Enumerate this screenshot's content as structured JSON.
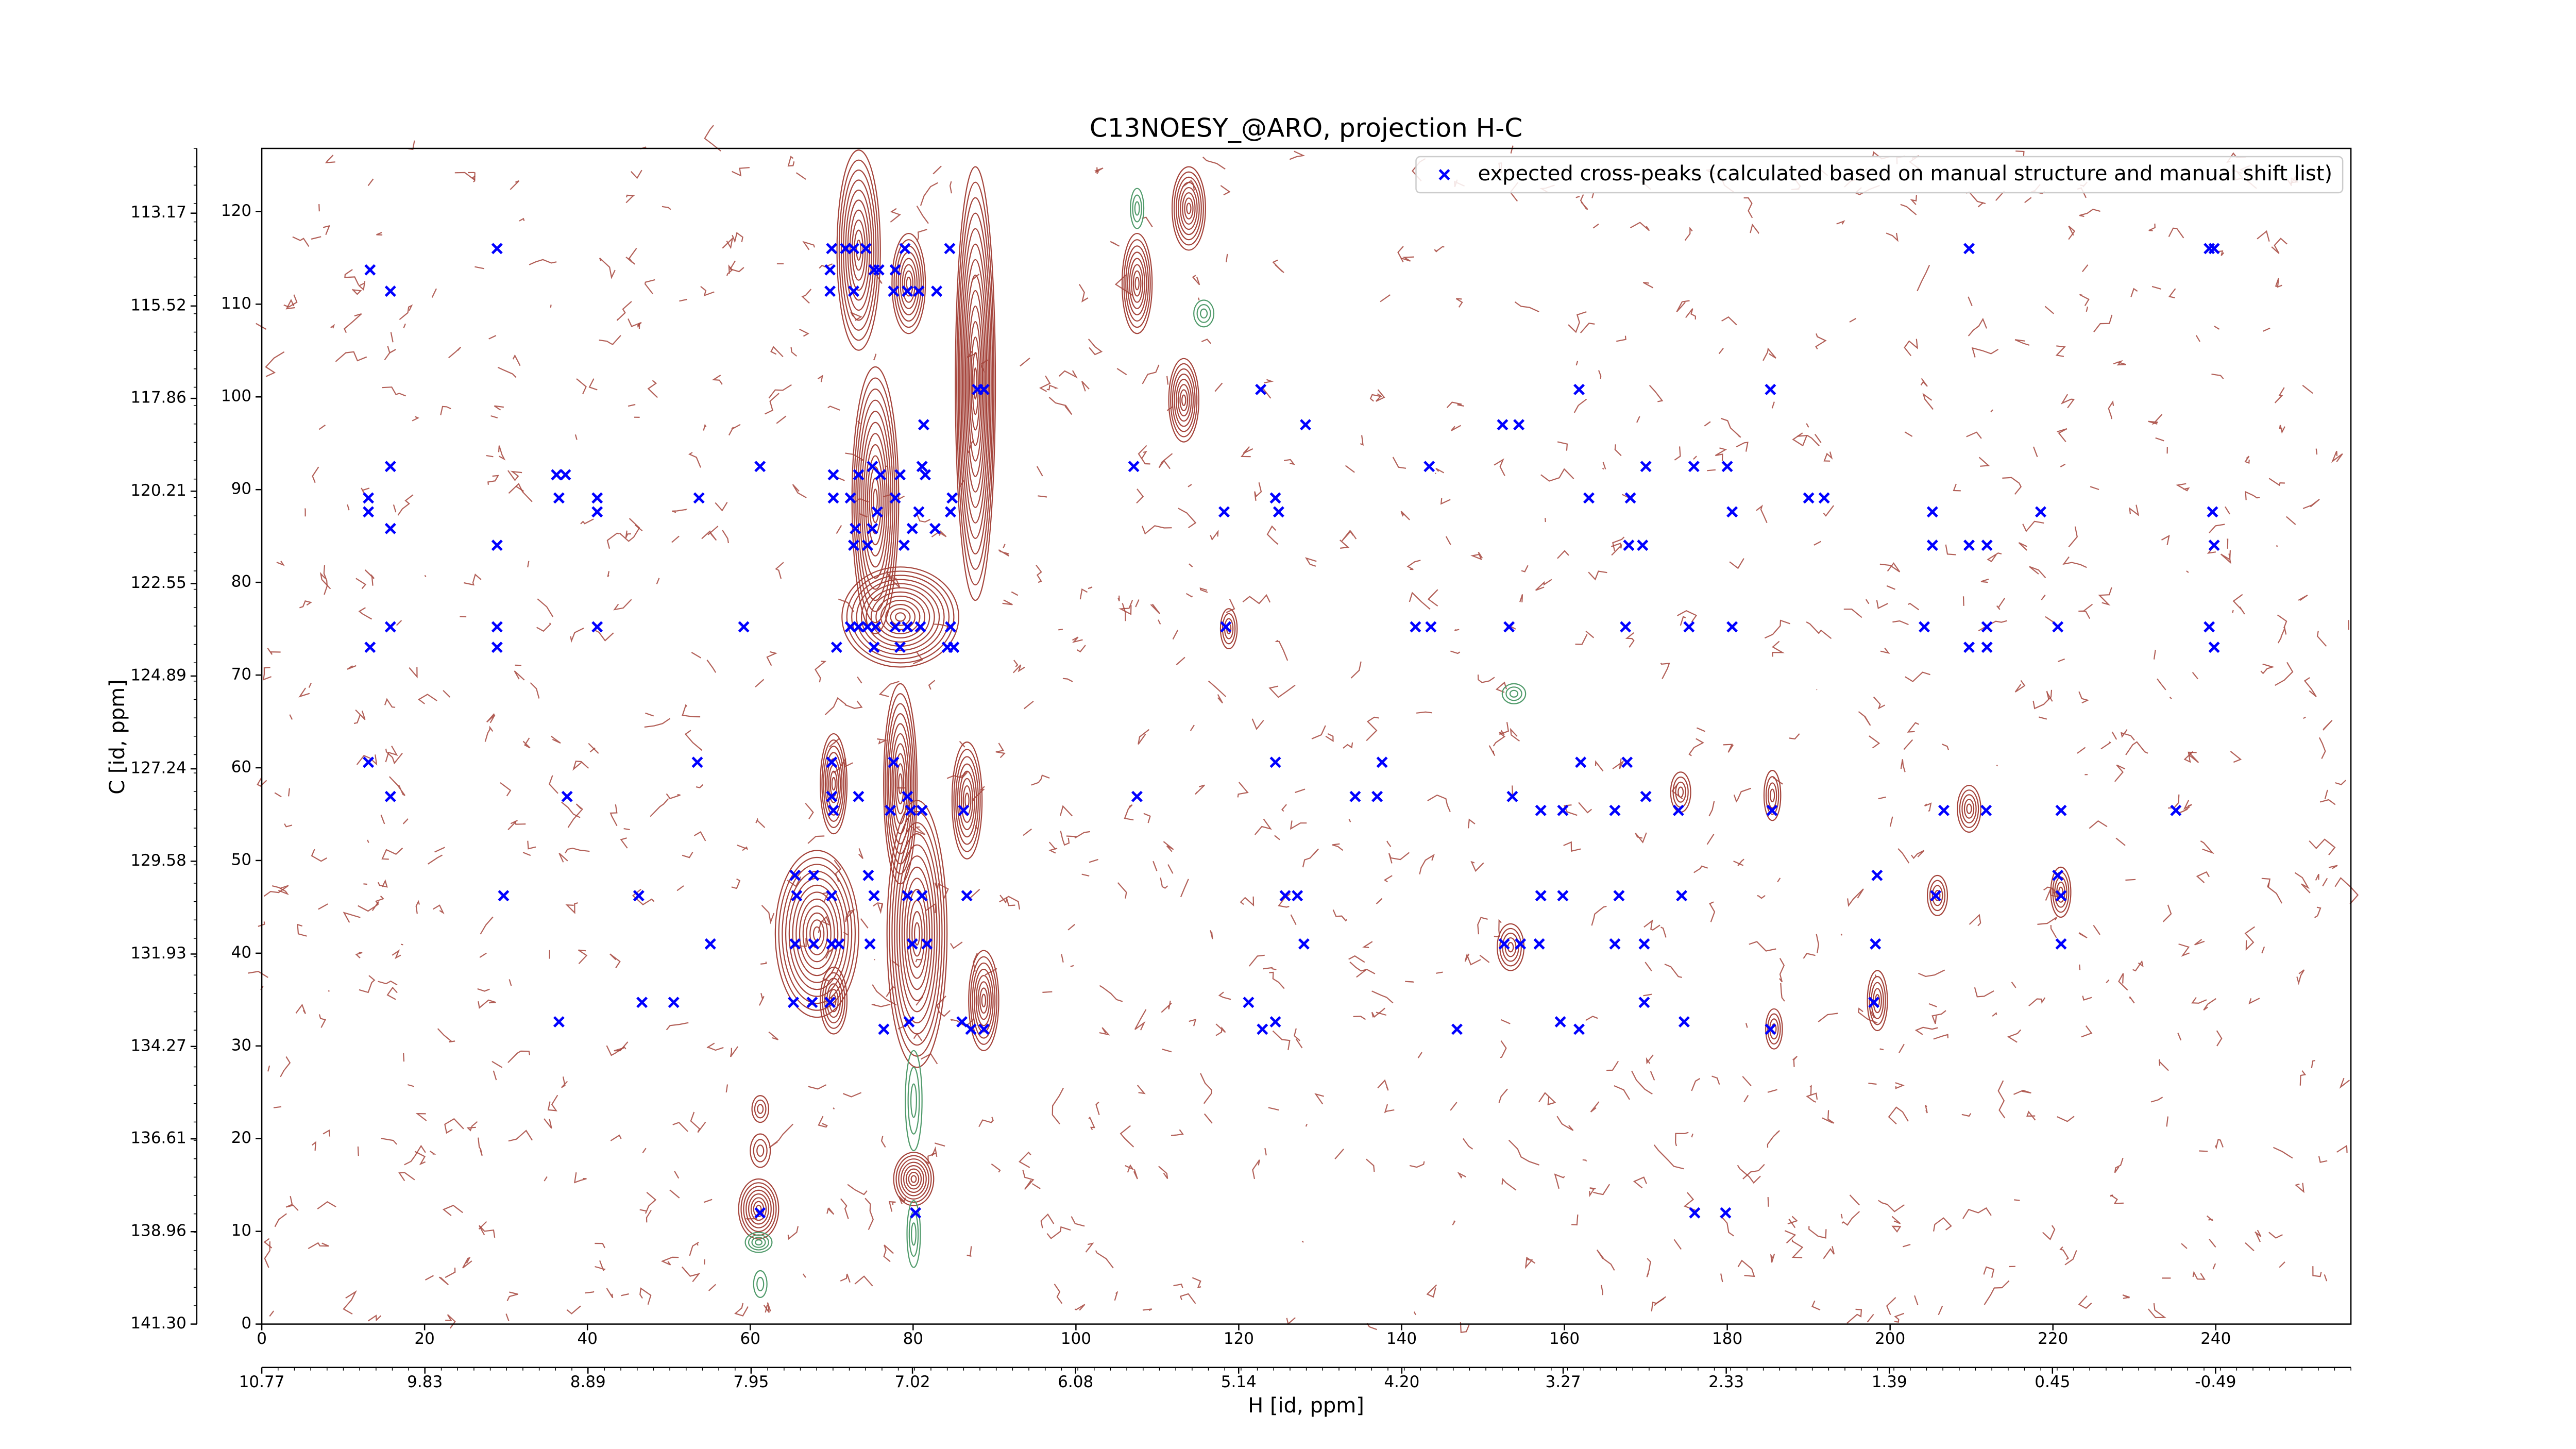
{
  "chart_data": {
    "type": "scatter",
    "title": "C13NOESY_@ARO, projection H-C",
    "xlabel": "H [id, ppm]",
    "ylabel": "C [id, ppm]",
    "xlim": [
      0,
      256.6
    ],
    "ylim": [
      0,
      126.8
    ],
    "xticks": [
      0,
      20,
      40,
      60,
      80,
      100,
      120,
      140,
      160,
      180,
      200,
      220,
      240
    ],
    "yticks": [
      0,
      10,
      20,
      30,
      40,
      50,
      60,
      70,
      80,
      90,
      100,
      110,
      120
    ],
    "x2lim": [
      10.77,
      -1.27
    ],
    "x2ticks": [
      10.77,
      9.83,
      8.89,
      7.95,
      7.02,
      6.08,
      5.14,
      {
        "value": 4.2,
        "label": "4.20"
      },
      3.27,
      2.33,
      1.39,
      0.45,
      -0.49
    ],
    "y2lim": [
      141.3,
      111.53
    ],
    "y2ticks": [
      {
        "value": 141.3,
        "label": "141.30"
      },
      138.96,
      136.61,
      134.27,
      131.93,
      129.58,
      127.24,
      124.89,
      122.55,
      120.21,
      117.86,
      115.52,
      113.17
    ],
    "grid": false,
    "legend": "upper right",
    "series": [
      {
        "name": "expected cross-peaks (calculated based on manual structure and manual shift list)",
        "color": "#0000ff",
        "x": [
          28.9,
          70,
          71.7,
          72.7,
          74.2,
          79,
          84.5,
          209.7,
          239.2,
          239.8,
          13.3,
          69.8,
          75.2,
          75.8,
          77.8,
          15.8,
          69.8,
          72.7,
          77.6,
          79.3,
          80.7,
          82.9,
          87.9,
          88.7,
          122.7,
          161.8,
          185.3,
          81.3,
          128.2,
          152.4,
          154.4,
          15.8,
          61.2,
          75,
          81.1,
          107.1,
          143.4,
          170,
          175.9,
          180,
          36.2,
          37.3,
          70.2,
          73.3,
          76,
          78.4,
          81.5,
          13.1,
          36.5,
          41.2,
          53.7,
          70.2,
          72.3,
          77.8,
          84.8,
          124.5,
          163,
          168.1,
          190,
          191.9,
          13.1,
          41.2,
          75.6,
          80.7,
          84.6,
          118.2,
          124.9,
          180.6,
          205.2,
          218.5,
          239.6,
          15.8,
          72.9,
          75,
          79.9,
          82.7,
          28.9,
          72.7,
          74.4,
          78.9,
          167.9,
          169.6,
          205.2,
          209.7,
          211.9,
          239.8,
          15.8,
          28.9,
          41.2,
          59.2,
          72.3,
          73.3,
          74.4,
          75.4,
          77.8,
          79.3,
          80.9,
          84.6,
          118.4,
          141.7,
          143.6,
          153.2,
          167.5,
          175.3,
          180.6,
          204.2,
          211.9,
          220.6,
          239.2,
          13.3,
          28.9,
          70.6,
          75.2,
          78.4,
          84.2,
          85,
          209.7,
          211.9,
          239.8,
          13.1,
          53.5,
          70,
          77.6,
          124.5,
          137.6,
          162,
          167.7,
          15.8,
          37.5,
          70,
          73.3,
          79.3,
          107.5,
          134.3,
          137,
          153.6,
          170,
          70.2,
          77.2,
          79.7,
          81.1,
          86.2,
          157.1,
          159.8,
          166.2,
          174,
          185.5,
          206.6,
          211.8,
          221,
          235.1,
          65.5,
          67.8,
          74.5,
          198.4,
          220.6,
          29.7,
          46.3,
          65.7,
          70,
          75.2,
          79.3,
          81.1,
          86.6,
          125.7,
          127.2,
          157.1,
          159.8,
          166.7,
          174.4,
          205.6,
          221,
          55.1,
          65.5,
          67.8,
          70,
          70.9,
          74.7,
          79.9,
          81.7,
          128,
          152.6,
          154.6,
          156.9,
          166.2,
          169.8,
          198.2,
          221,
          46.7,
          50.6,
          65.3,
          67.6,
          69.8,
          121.2,
          169.8,
          198,
          36.5,
          79.5,
          86,
          124.5,
          159.5,
          174.7,
          76.4,
          87.1,
          88.7,
          122.9,
          146.8,
          161.8,
          185.3,
          61.2,
          80.3,
          176,
          179.8
        ],
        "values": [
          116,
          116,
          116,
          116,
          116,
          116,
          116,
          116,
          116,
          116,
          113.7,
          113.7,
          113.7,
          113.7,
          113.7,
          111.4,
          111.4,
          111.4,
          111.4,
          111.4,
          111.4,
          111.4,
          100.8,
          100.8,
          100.8,
          100.8,
          100.8,
          97,
          97,
          97,
          97,
          92.5,
          92.5,
          92.5,
          92.5,
          92.5,
          92.5,
          92.5,
          92.5,
          92.5,
          91.6,
          91.6,
          91.6,
          91.6,
          91.6,
          91.6,
          91.6,
          89.1,
          89.1,
          89.1,
          89.1,
          89.1,
          89.1,
          89.1,
          89.1,
          89.1,
          89.1,
          89.1,
          89.1,
          89.1,
          87.6,
          87.6,
          87.6,
          87.6,
          87.6,
          87.6,
          87.6,
          87.6,
          87.6,
          87.6,
          87.6,
          85.8,
          85.8,
          85.8,
          85.8,
          85.8,
          84,
          84,
          84,
          84,
          84,
          84,
          84,
          84,
          84,
          84,
          75.2,
          75.2,
          75.2,
          75.2,
          75.2,
          75.2,
          75.2,
          75.2,
          75.2,
          75.2,
          75.2,
          75.2,
          75.2,
          75.2,
          75.2,
          75.2,
          75.2,
          75.2,
          75.2,
          75.2,
          75.2,
          75.2,
          75.2,
          73,
          73,
          73,
          73,
          73,
          73,
          73,
          73,
          73,
          73,
          60.6,
          60.6,
          60.6,
          60.6,
          60.6,
          60.6,
          60.6,
          60.6,
          56.9,
          56.9,
          56.9,
          56.9,
          56.9,
          56.9,
          56.9,
          56.9,
          56.9,
          56.9,
          55.4,
          55.4,
          55.4,
          55.4,
          55.4,
          55.4,
          55.4,
          55.4,
          55.4,
          55.4,
          55.4,
          55.4,
          55.4,
          55.4,
          48.4,
          48.4,
          48.4,
          48.4,
          48.4,
          46.2,
          46.2,
          46.2,
          46.2,
          46.2,
          46.2,
          46.2,
          46.2,
          46.2,
          46.2,
          46.2,
          46.2,
          46.2,
          46.2,
          46.2,
          46.2,
          41,
          41,
          41,
          41,
          41,
          41,
          41,
          41,
          41,
          41,
          41,
          41,
          41,
          41,
          41,
          41,
          34.7,
          34.7,
          34.7,
          34.7,
          34.7,
          34.7,
          34.7,
          34.7,
          32.6,
          32.6,
          32.6,
          32.6,
          32.6,
          32.6,
          31.8,
          31.8,
          31.8,
          31.8,
          31.8,
          31.8,
          31.8,
          12,
          12,
          12,
          12
        ]
      }
    ]
  }
}
